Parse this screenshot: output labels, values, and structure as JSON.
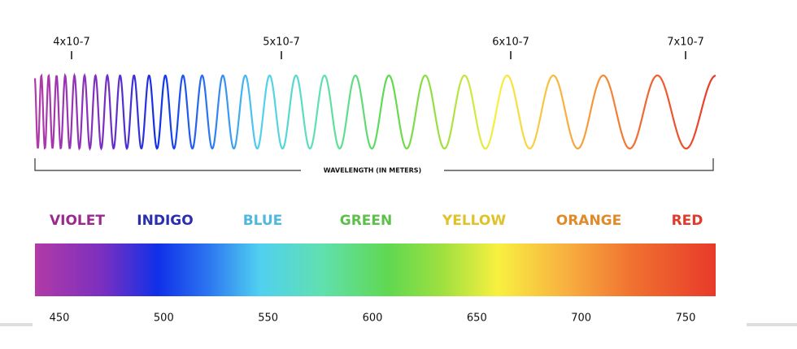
{
  "top_scale": {
    "labels": [
      "4x10-7",
      "5x10-7",
      "6x10-7",
      "7x10-7"
    ]
  },
  "wave_label": "WAVELENGTH (IN METERS)",
  "color_names": [
    "VIOLET",
    "INDIGO",
    "BLUE",
    "GREEN",
    "YELLOW",
    "ORANGE",
    "RED"
  ],
  "spectrum_axis": {
    "ticks": [
      450,
      500,
      550,
      600,
      650,
      700,
      750
    ]
  }
}
